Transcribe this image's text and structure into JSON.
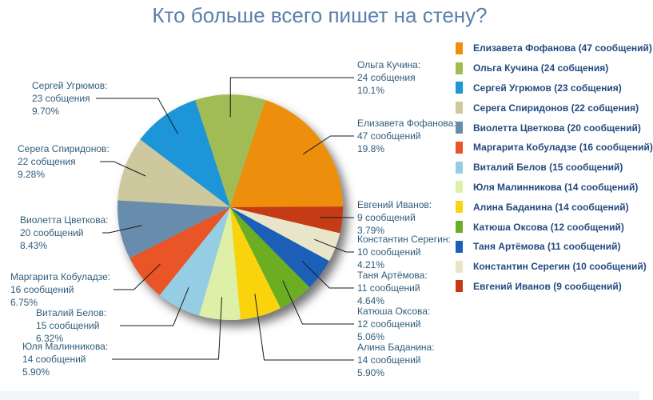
{
  "page": {
    "title": "Кто больше всего пишет на стену?"
  },
  "colors": {
    "title_text": "#5a7fab",
    "callout_text": "#305c7a",
    "legend_text": "#234a80",
    "leader_line": "#1a1a1a",
    "footer_bar": "#f2f6f9"
  },
  "chart_data": {
    "type": "pie",
    "title": "Кто больше всего пишет на стену?",
    "legend_position": "right",
    "grid": false,
    "start_angle_deg": -18.1,
    "draw_order": [
      "Ольга Кучина",
      "Елизавета Фофанова",
      "Евгений Иванов",
      "Константин Серегин",
      "Таня Артёмова",
      "Катюша Оксова",
      "Алина Баданина",
      "Юля Малинникова",
      "Виталий Белов",
      "Маргарита Кобуладзе",
      "Виолетта Цветкова",
      "Серега Спиридонов",
      "Сергей Угрюмов"
    ],
    "slices": [
      {
        "name": "Елизавета Фофанова",
        "messages": 47,
        "percent": 19.8,
        "percent_label": "19.8%",
        "count_label": "47 сообщений",
        "callout_title": "Елизавета Фофанова:",
        "legend_label": "Елизавета Фофанова (47 сообщений)",
        "color": "#EE8E0D"
      },
      {
        "name": "Ольга Кучина",
        "messages": 24,
        "percent": 10.1,
        "percent_label": "10.1%",
        "count_label": "24 собщения",
        "callout_title": "Ольга Кучина:",
        "legend_label": "Ольга Кучина (24 собщения)",
        "color": "#A2BC55"
      },
      {
        "name": "Сергей Угрюмов",
        "messages": 23,
        "percent": 9.7,
        "percent_label": "9.70%",
        "count_label": "23 собщения",
        "callout_title": "Сергей Угрюмов:",
        "legend_label": "Сергей Угрюмов (23 собщения)",
        "color": "#1E96D8"
      },
      {
        "name": "Серега Спиридонов",
        "messages": 22,
        "percent": 9.28,
        "percent_label": "9.28%",
        "count_label": "22 собщения",
        "callout_title": "Серега Спиридонов:",
        "legend_label": "Серега Спиридонов (22 собщения)",
        "color": "#CDC89E"
      },
      {
        "name": "Виолетта Цветкова",
        "messages": 20,
        "percent": 8.43,
        "percent_label": "8.43%",
        "count_label": "20 сообщений",
        "callout_title": "Виолетта Цветкова:",
        "legend_label": "Виолетта Цветкова (20 сообщений)",
        "color": "#688CAC"
      },
      {
        "name": "Маргарита Кобуладзе",
        "messages": 16,
        "percent": 6.75,
        "percent_label": "6.75%",
        "count_label": "16 сообщений",
        "callout_title": "Маргарита Кобуладзе:",
        "legend_label": "Маргарита Кобуладзе (16 сообщений)",
        "color": "#E95426"
      },
      {
        "name": "Виталий Белов",
        "messages": 15,
        "percent": 6.32,
        "percent_label": "6.32%",
        "count_label": "15 сообщений",
        "callout_title": "Виталий Белов:",
        "legend_label": "Виталий Белов (15 сообщений)",
        "color": "#95CEE4"
      },
      {
        "name": "Юля Малинникова",
        "messages": 14,
        "percent": 5.9,
        "percent_label": "5.90%",
        "count_label": "14 сообщений",
        "callout_title": "Юля Малинникова:",
        "legend_label": "Юля Малинникова (14 сообщений)",
        "color": "#DEF0A7"
      },
      {
        "name": "Алина Баданина",
        "messages": 14,
        "percent": 5.9,
        "percent_label": "5.90%",
        "count_label": "14 сообщений",
        "callout_title": "Алина Баданина:",
        "legend_label": "Алина Баданина (14 сообщений)",
        "color": "#F9D411"
      },
      {
        "name": "Катюша Оксова",
        "messages": 12,
        "percent": 5.06,
        "percent_label": "5.06%",
        "count_label": "12 сообщений",
        "callout_title": "Катюша Оксова:",
        "legend_label": "Катюша Оксова (12 сообщений)",
        "color": "#6CAE23"
      },
      {
        "name": "Таня Артёмова",
        "messages": 11,
        "percent": 4.64,
        "percent_label": "4.64%",
        "count_label": "11 сообщений",
        "callout_title": "Таня Артёмова:",
        "legend_label": "Таня Артёмова (11 сообщений)",
        "color": "#1C5FB8"
      },
      {
        "name": "Константин Серегин",
        "messages": 10,
        "percent": 4.21,
        "percent_label": "4.21%",
        "count_label": "10 сообщений",
        "callout_title": "Константин Серегин:",
        "legend_label": "Константин Серегин (10 сообщений)",
        "color": "#E9E5C9"
      },
      {
        "name": "Евгений Иванов",
        "messages": 9,
        "percent": 3.79,
        "percent_label": "3.79%",
        "count_label": "9 сообщений",
        "callout_title": "Евгений Иванов:",
        "legend_label": "Евгений Иванов (9 сообщений)",
        "color": "#C43A12"
      }
    ]
  }
}
